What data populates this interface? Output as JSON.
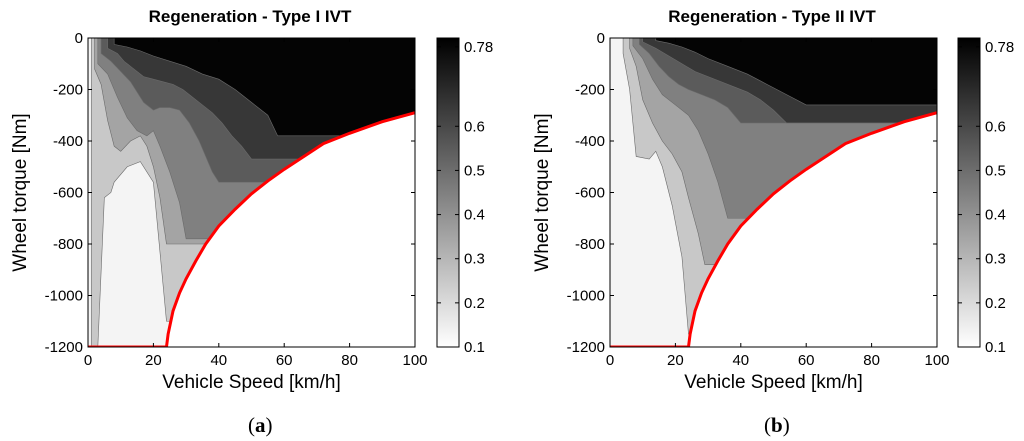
{
  "figure": {
    "panel_labels": [
      {
        "open": "(",
        "letter": "a",
        "close": ")"
      },
      {
        "open": "(",
        "letter": "b",
        "close": ")"
      }
    ]
  },
  "chart_data": [
    {
      "type": "heatmap",
      "title": "Regeneration - Type I IVT",
      "xlabel": "Vehicle Speed [km/h]",
      "ylabel": "Wheel torque [Nm]",
      "xlim": [
        0,
        100
      ],
      "ylim": [
        -1200,
        0
      ],
      "x_ticks": [
        0,
        20,
        40,
        60,
        80,
        100
      ],
      "y_ticks": [
        0,
        -200,
        -400,
        -600,
        -800,
        -1000,
        -1200
      ],
      "colorbar": {
        "range": [
          0.1,
          0.8
        ],
        "ticks": [
          0.1,
          0.2,
          0.3,
          0.4,
          0.5,
          0.6,
          0.78
        ],
        "colormap": "gray_reversed"
      },
      "max_torque_curve": {
        "color": "#ff0000",
        "x": [
          0,
          24,
          24.5,
          26,
          28,
          30,
          33,
          36,
          40,
          45,
          50,
          55,
          60,
          66,
          72,
          80,
          90,
          100
        ],
        "y": [
          -1200,
          -1200,
          -1150,
          -1060,
          -990,
          -935,
          -865,
          -800,
          -730,
          -665,
          -605,
          -555,
          -510,
          -460,
          -410,
          -370,
          -325,
          -290
        ]
      },
      "efficiency_boundaries": [
        {
          "level": 0.2,
          "x": [
            1,
            3,
            5,
            7,
            8,
            12,
            16,
            20,
            24
          ],
          "y": [
            -1200,
            -1200,
            -620,
            -600,
            -560,
            -500,
            -480,
            -560,
            -1100
          ]
        },
        {
          "level": 0.3,
          "x": [
            2,
            4,
            6,
            8,
            10,
            13,
            16,
            18,
            20,
            22,
            24
          ],
          "y": [
            -120,
            -180,
            -320,
            -420,
            -440,
            -400,
            -380,
            -420,
            -500,
            -620,
            -800
          ]
        },
        {
          "level": 0.4,
          "x": [
            3,
            6,
            9,
            12,
            15,
            18,
            20,
            22,
            25,
            28,
            30
          ],
          "y": [
            -100,
            -140,
            -230,
            -310,
            -360,
            -380,
            -360,
            -420,
            -520,
            -640,
            -780
          ]
        },
        {
          "level": 0.5,
          "x": [
            4,
            7,
            10,
            13,
            15,
            17,
            20,
            22,
            25,
            28,
            31,
            34,
            36,
            38,
            40
          ],
          "y": [
            -60,
            -90,
            -130,
            -170,
            -210,
            -250,
            -280,
            -270,
            -270,
            -280,
            -330,
            -400,
            -460,
            -520,
            -560
          ]
        },
        {
          "level": 0.6,
          "x": [
            6,
            9,
            11,
            13,
            15,
            17,
            20,
            23,
            26,
            29,
            32,
            35,
            38,
            41,
            44,
            47,
            50
          ],
          "y": [
            -40,
            -60,
            -90,
            -110,
            -130,
            -150,
            -160,
            -170,
            -180,
            -200,
            -230,
            -260,
            -290,
            -330,
            -380,
            -420,
            -470
          ]
        },
        {
          "level": 0.7,
          "x": [
            8,
            12,
            16,
            20,
            25,
            30,
            35,
            40,
            45,
            50,
            55,
            58
          ],
          "y": [
            -25,
            -35,
            -50,
            -70,
            -90,
            -110,
            -140,
            -160,
            -200,
            -250,
            -300,
            -380
          ]
        }
      ]
    },
    {
      "type": "heatmap",
      "title": "Regeneration - Type II IVT",
      "xlabel": "Vehicle Speed [km/h]",
      "ylabel": "Wheel torque [Nm]",
      "xlim": [
        0,
        100
      ],
      "ylim": [
        -1200,
        0
      ],
      "x_ticks": [
        0,
        20,
        40,
        60,
        80,
        100
      ],
      "y_ticks": [
        0,
        -200,
        -400,
        -600,
        -800,
        -1000,
        -1200
      ],
      "colorbar": {
        "range": [
          0.1,
          0.8
        ],
        "ticks": [
          0.1,
          0.2,
          0.3,
          0.4,
          0.5,
          0.6,
          0.78
        ],
        "colormap": "gray_reversed"
      },
      "max_torque_curve": {
        "color": "#ff0000",
        "x": [
          0,
          24,
          24.5,
          26,
          28,
          30,
          33,
          36,
          40,
          45,
          50,
          55,
          60,
          66,
          72,
          80,
          90,
          100
        ],
        "y": [
          -1200,
          -1200,
          -1150,
          -1060,
          -990,
          -935,
          -865,
          -800,
          -730,
          -665,
          -605,
          -555,
          -510,
          -460,
          -410,
          -370,
          -325,
          -290
        ]
      },
      "efficiency_boundaries": [
        {
          "level": 0.2,
          "x": [
            4,
            6,
            8,
            12,
            14,
            16,
            19,
            22,
            24
          ],
          "y": [
            -60,
            -200,
            -460,
            -470,
            -440,
            -500,
            -650,
            -850,
            -1150
          ]
        },
        {
          "level": 0.3,
          "x": [
            6,
            8,
            10,
            13,
            16,
            19,
            22,
            24,
            27,
            29
          ],
          "y": [
            -40,
            -110,
            -240,
            -330,
            -400,
            -450,
            -520,
            -620,
            -760,
            -880
          ]
        },
        {
          "level": 0.4,
          "x": [
            7,
            10,
            13,
            16,
            20,
            24,
            27,
            30,
            33,
            36
          ],
          "y": [
            -30,
            -80,
            -160,
            -220,
            -260,
            -300,
            -360,
            -450,
            -560,
            -700
          ]
        },
        {
          "level": 0.5,
          "x": [
            9,
            12,
            15,
            18,
            21,
            24,
            28,
            32,
            36,
            40
          ],
          "y": [
            -25,
            -60,
            -110,
            -150,
            -180,
            -200,
            -220,
            -240,
            -270,
            -330
          ]
        },
        {
          "level": 0.6,
          "x": [
            10,
            14,
            18,
            22,
            26,
            30,
            34,
            38,
            42,
            46,
            50,
            54
          ],
          "y": [
            -15,
            -40,
            -70,
            -100,
            -130,
            -150,
            -170,
            -190,
            -210,
            -240,
            -280,
            -330
          ]
        },
        {
          "level": 0.7,
          "x": [
            14,
            18,
            22,
            26,
            30,
            36,
            42,
            48,
            54,
            60
          ],
          "y": [
            -10,
            -20,
            -35,
            -55,
            -80,
            -110,
            -140,
            -180,
            -220,
            -260
          ]
        }
      ]
    }
  ]
}
